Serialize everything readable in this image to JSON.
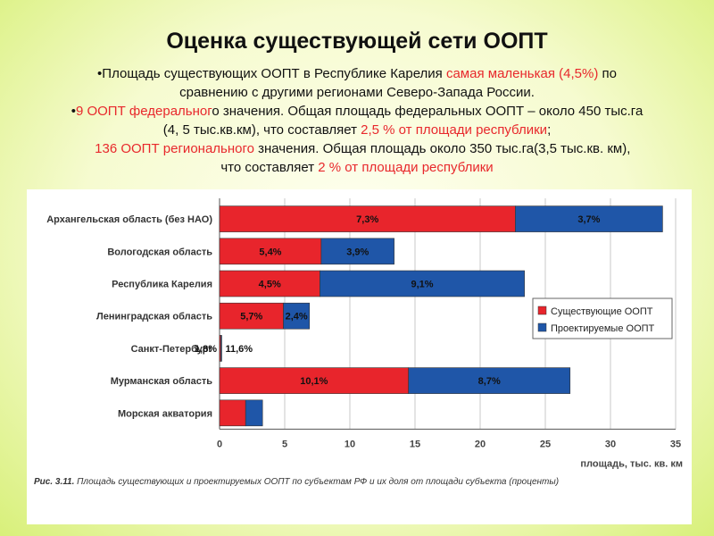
{
  "slide": {
    "title": "Оценка существующей сети ООПТ",
    "line1_a": "•Площадь существующих ООПТ в Республике Карелия ",
    "line1_red": "самая маленькая (4,5%)",
    "line1_b": " по",
    "line2": "сравнению с другими регионами Северо-Запада России.",
    "line3_dot": "•",
    "line3_red": "9 ООПТ федеральног",
    "line3_b": "о значения. Общая площадь федеральных ООПТ – около 450 тыс.га",
    "line4_a": "(4, 5 тыс.кв.км), что составляет ",
    "line4_red": "2,5 % от площади республики",
    "line4_b": ";",
    "line5_red": "136 ООПТ регионального",
    "line5_b": " значения.  Общая площадь около 350 тыс.га(3,5 тыс.кв. км),",
    "line6_a": "что составляет ",
    "line6_red": "2 % от площади республики"
  },
  "chart_data": {
    "type": "bar",
    "orientation": "horizontal",
    "stacked": true,
    "categories": [
      "Архангельская область (без НАО)",
      "Вологодская область",
      "Республика Карелия",
      "Ленинградская область",
      "Санкт-Петербург",
      "Мурманская область",
      "Морская акватория"
    ],
    "series": [
      {
        "name": "Существующие ООПТ",
        "color": "#e8252c",
        "values": [
          22.7,
          7.8,
          7.7,
          4.9,
          0.1,
          14.5,
          2.0
        ],
        "labels": [
          "7,3%",
          "5,4%",
          "4,5%",
          "5,7%",
          "1,8%",
          "10,1%",
          ""
        ]
      },
      {
        "name": "Проектируемые ООПТ",
        "color": "#1f56a8",
        "values": [
          11.3,
          5.6,
          15.7,
          2.0,
          0.05,
          12.4,
          1.3
        ],
        "labels": [
          "3,7%",
          "3,9%",
          "9,1%",
          "2,4%",
          "11,6%",
          "8,7%",
          ""
        ]
      }
    ],
    "xticks": [
      "0",
      "5",
      "10",
      "15",
      "20",
      "25",
      "30",
      "35"
    ],
    "xlim": [
      0,
      35
    ],
    "xlabel": "площадь, тыс. кв. км",
    "grid": true,
    "legend": "right",
    "caption_prefix": "Рис. 3.11.",
    "caption_text": " Площадь существующих и проектируемых ООПТ по субъектам РФ и их доля от площади субъекта (проценты)"
  }
}
